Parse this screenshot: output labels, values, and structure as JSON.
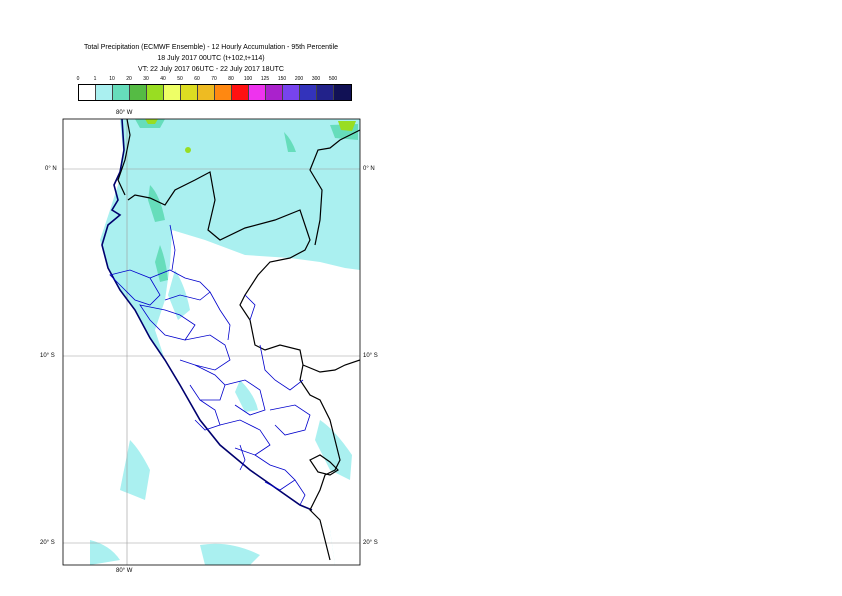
{
  "title": {
    "line1": "Total Precipitation (ECMWF Ensemble) - 12 Hourly Accumulation - 95th Percentile",
    "line2": "18 July 2017 00UTC (t+102,t+114)",
    "line3": "VT: 22 July 2017 06UTC - 22 July 2017 18UTC"
  },
  "legend": {
    "ticks": [
      "0",
      "1",
      "10",
      "20",
      "30",
      "40",
      "50",
      "60",
      "70",
      "80",
      "100",
      "125",
      "150",
      "200",
      "300",
      "500"
    ],
    "colors": [
      "#ffffff",
      "#aaf0f0",
      "#66ddbb",
      "#55bb44",
      "#99dd22",
      "#eeff66",
      "#dddd22",
      "#eebb22",
      "#ff8811",
      "#ff1111",
      "#ee33ee",
      "#aa22cc",
      "#7744ee",
      "#3333bb",
      "#22228a",
      "#111155"
    ]
  },
  "map": {
    "region": "Peru",
    "land_color": "#ffffff",
    "precip_light": "#aaf0f0",
    "precip_medium": "#66ddbb",
    "precip_heavy": "#99dd22",
    "border_color": "#000000",
    "admin_border_color": "#0000cc",
    "coast_color": "#00006e",
    "grid_color": "#999999"
  },
  "grid": {
    "lon_top": "80° W",
    "lon_bottom": "80° W",
    "lat_0_left": "0° N",
    "lat_0_right": "0° N",
    "lat_10_left": "10° S",
    "lat_10_right": "10° S",
    "lat_20_left": "20° S",
    "lat_20_right": "20° S"
  }
}
